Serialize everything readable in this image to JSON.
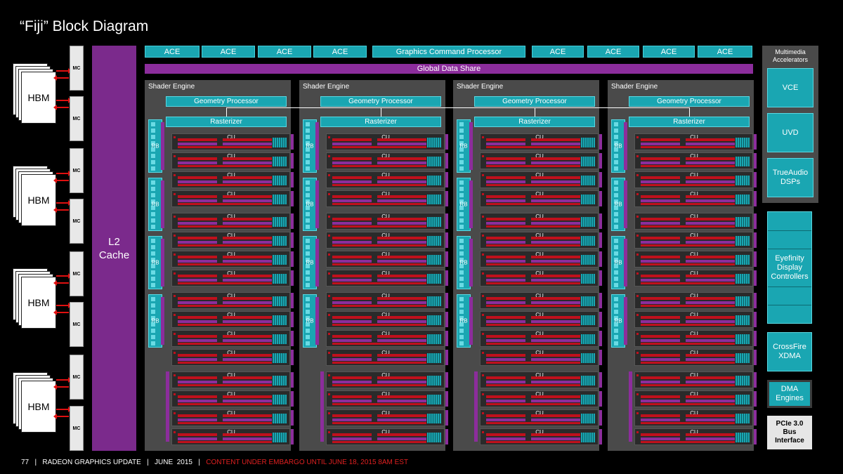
{
  "title": "“Fiji” Block Diagram",
  "hbm_label": "HBM",
  "mc_label": "MC",
  "l2": {
    "line1": "L2",
    "line2": "Cache"
  },
  "command_bar": {
    "ace_label": "ACE",
    "gcp_label": "Graphics Command Processor"
  },
  "gds_label": "Global Data Share",
  "shader_engine": {
    "label": "Shader Engine",
    "geometry": "Geometry Processor",
    "rasterizer": "Rasterizer",
    "rb_label": "RB",
    "cu_label": "CU"
  },
  "multimedia": {
    "title_line1": "Multimedia",
    "title_line2": "Accelerators",
    "vce": "VCE",
    "uvd": "UVD",
    "trueaudio_line1": "TrueAudio",
    "trueaudio_line2": "DSPs"
  },
  "eyefinity": {
    "line1": "Eyefinity",
    "line2": "Display",
    "line3": "Controllers"
  },
  "crossfire": {
    "line1": "CrossFire",
    "line2": "XDMA"
  },
  "dma": {
    "line1": "DMA",
    "line2": "Engines"
  },
  "pcie": {
    "line1": "PCIe 3.0",
    "line2": "Bus",
    "line3": "Interface"
  },
  "footer": {
    "main": "77   |   RADEON GRAPHICS UPDATE   |   JUNE  2015   |   ",
    "embargo": "CONTENT UNDER EMBARGO UNTIL JUNE 18, 2015 8AM EST"
  },
  "colors": {
    "teal": "#1aa6b2",
    "purple": "#8c2d9c",
    "red": "#c0101c",
    "panel_gray": "#4a4a4a"
  }
}
